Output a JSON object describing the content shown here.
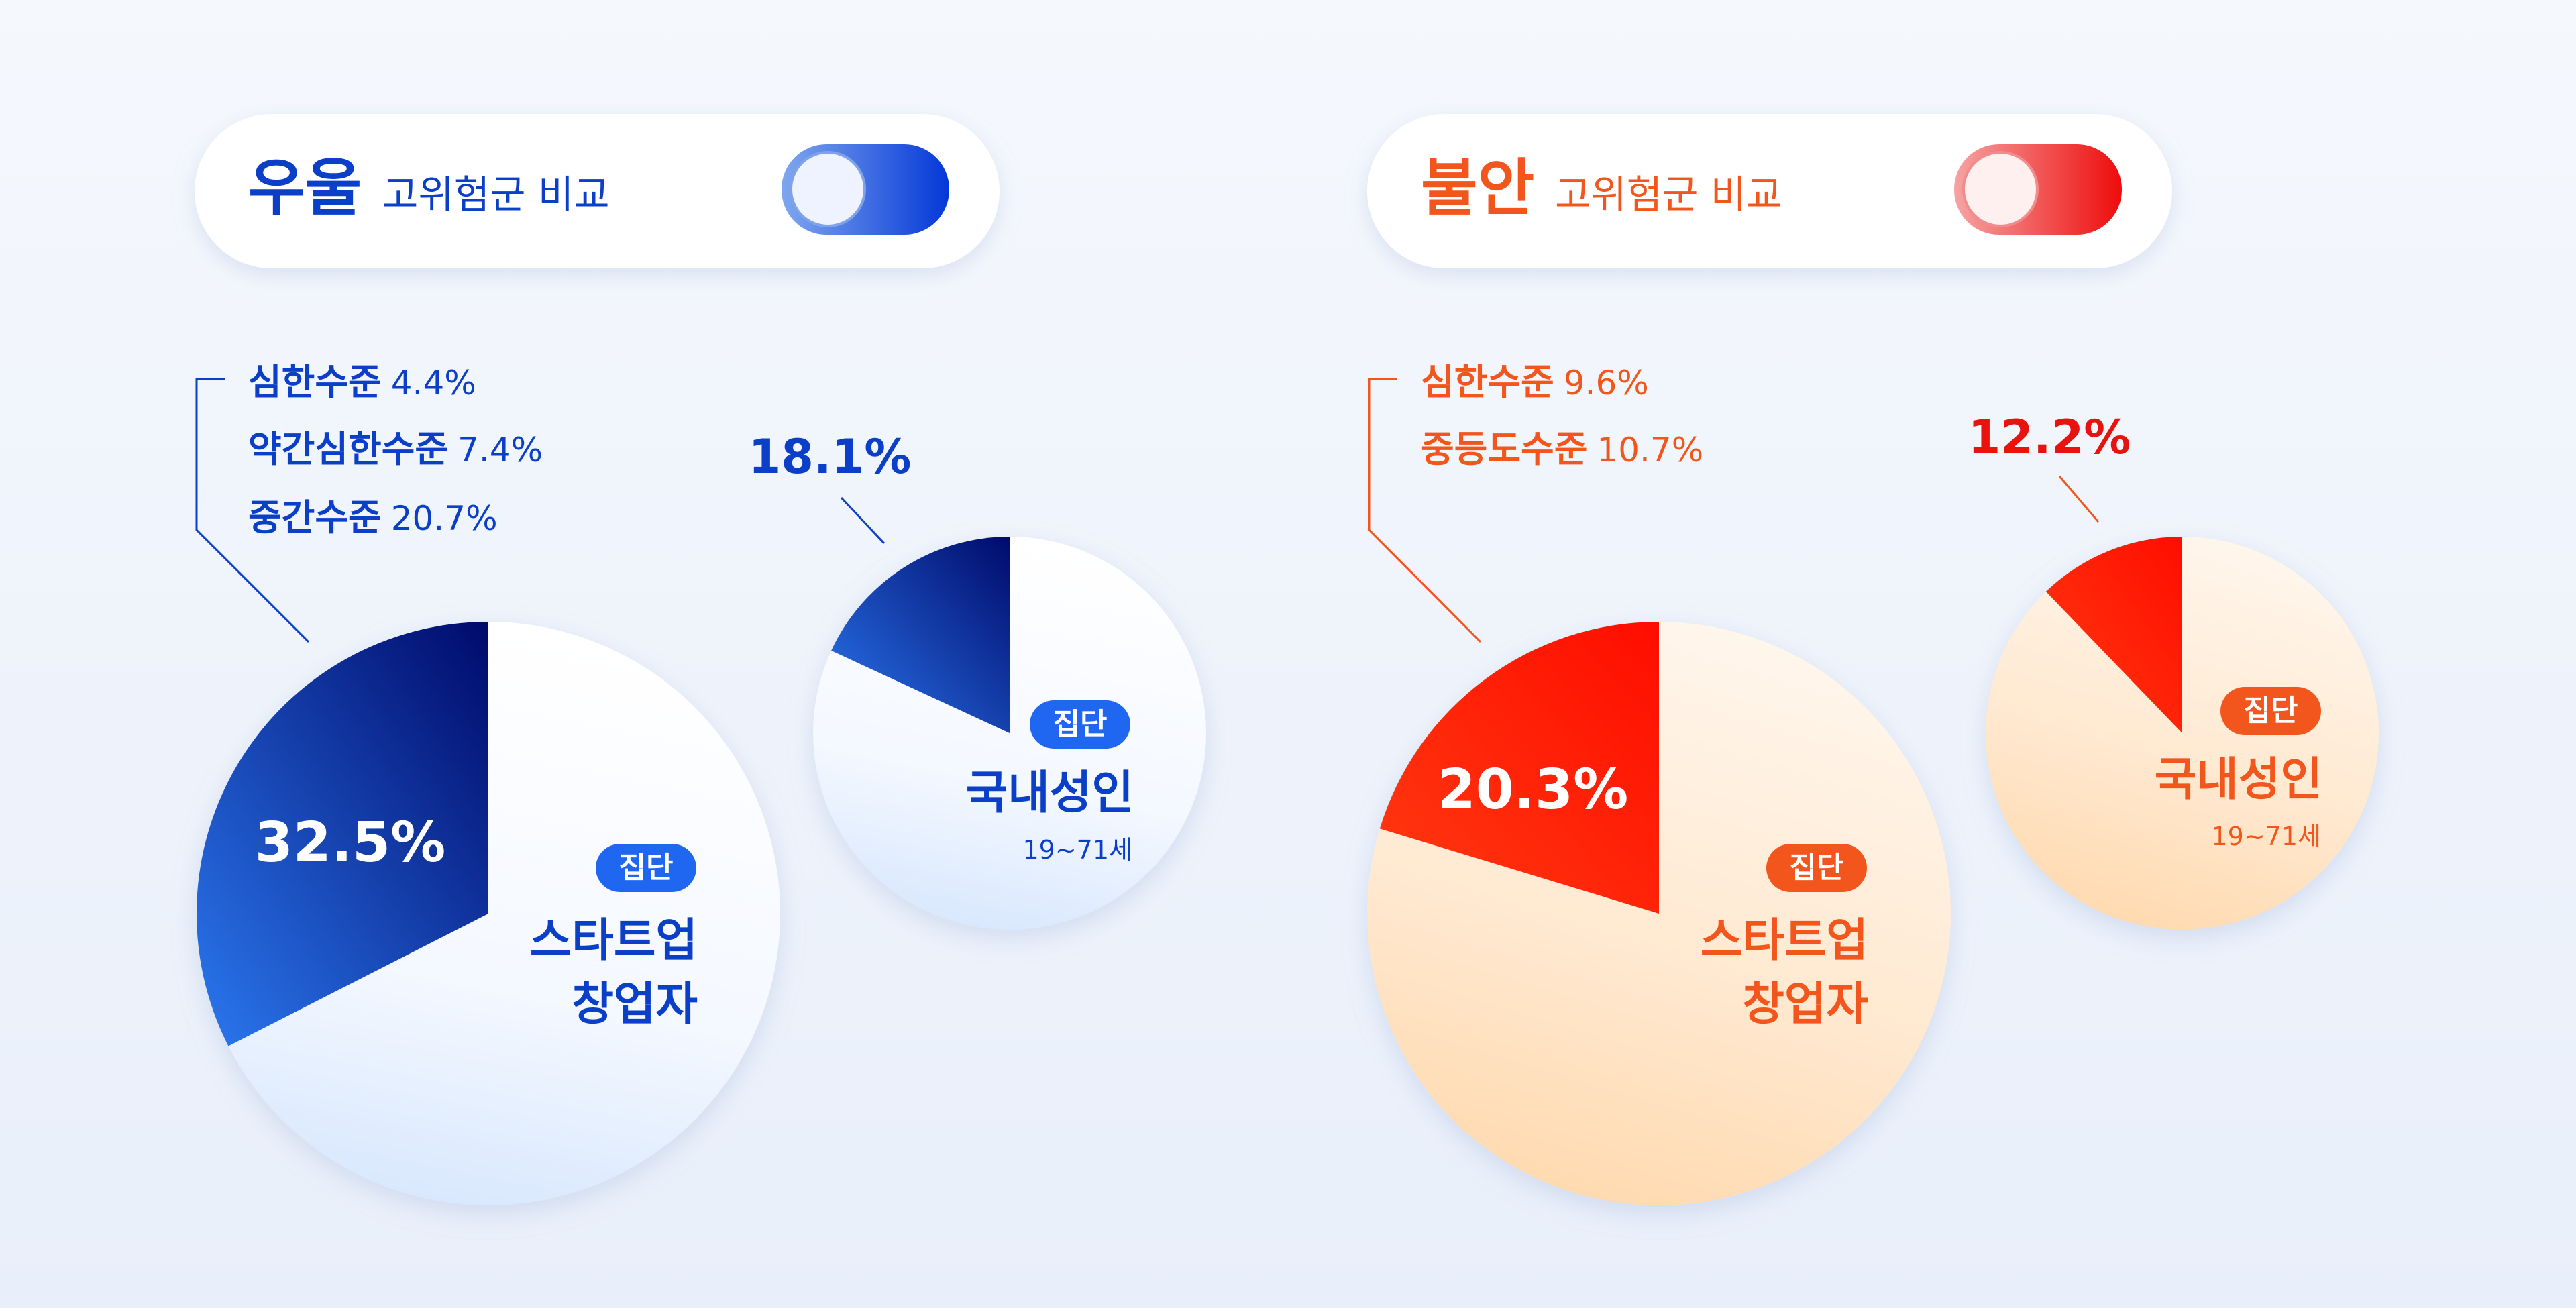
{
  "colors": {
    "blue": "#0b3fc7",
    "blue_dark": "#000c74",
    "blue_mid": "#2b6de8",
    "orange": "#f2561c",
    "red": "#e8120e",
    "red_bright": "#ff2a00",
    "orange_light": "#ffe3c2"
  },
  "depression": {
    "toggle": {
      "title": "우울",
      "subtitle": "고위험군 비교",
      "icon": "toggle-on-icon"
    },
    "startup": {
      "breakdown": [
        {
          "label": "심한수준",
          "value": "4.4%"
        },
        {
          "label": "약간심한수준",
          "value": "7.4%"
        },
        {
          "label": "중간수준",
          "value": "20.7%"
        }
      ],
      "percent_label": "32.5%",
      "badge": "집단",
      "group_line1": "스타트업",
      "group_line2": "창업자"
    },
    "adult": {
      "percent_label": "18.1%",
      "badge": "집단",
      "group": "국내성인",
      "age": "19~71세"
    }
  },
  "anxiety": {
    "toggle": {
      "title": "불안",
      "subtitle": "고위험군 비교",
      "icon": "toggle-on-icon"
    },
    "startup": {
      "breakdown": [
        {
          "label": "심한수준",
          "value": "9.6%"
        },
        {
          "label": "중등도수준",
          "value": "10.7%"
        }
      ],
      "percent_label": "20.3%",
      "badge": "집단",
      "group_line1": "스타트업",
      "group_line2": "창업자"
    },
    "adult": {
      "percent_label": "12.2%",
      "badge": "집단",
      "group": "국내성인",
      "age": "19~71세"
    }
  },
  "chart_data": [
    {
      "type": "pie",
      "categories": [
        "스타트업 창업자",
        "국내성인"
      ],
      "series": [
        {
          "name": "우울",
          "values": [
            32.5,
            18.1
          ]
        },
        {
          "name": "불안",
          "values": [
            20.3,
            12.2
          ]
        }
      ],
      "startup_breakdown": {
        "우울": [
          {
            "label": "심한수준",
            "value": 4.4
          },
          {
            "label": "약간심한수준",
            "value": 7.4
          },
          {
            "label": "중간수준",
            "value": 20.7
          }
        ],
        "불안": [
          {
            "label": "심한수준",
            "value": 9.6
          },
          {
            "label": "중등도수준",
            "value": 10.7
          }
        ]
      },
      "title": "",
      "xlabel": "",
      "ylabel": ""
    }
  ]
}
